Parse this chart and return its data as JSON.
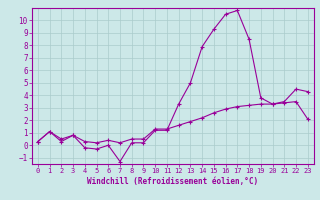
{
  "windchill_line": [
    0.3,
    1.1,
    0.3,
    0.8,
    -0.2,
    -0.3,
    0.0,
    -1.3,
    0.2,
    0.2,
    1.2,
    1.2,
    3.3,
    5.0,
    7.9,
    9.3,
    10.5,
    10.8,
    8.5,
    3.8,
    3.3,
    3.5,
    4.5,
    4.3
  ],
  "temp_line": [
    0.3,
    1.1,
    0.5,
    0.8,
    0.3,
    0.2,
    0.4,
    0.2,
    0.5,
    0.5,
    1.3,
    1.3,
    1.6,
    1.9,
    2.2,
    2.6,
    2.9,
    3.1,
    3.2,
    3.3,
    3.3,
    3.4,
    3.5,
    2.1
  ],
  "x": [
    0,
    1,
    2,
    3,
    4,
    5,
    6,
    7,
    8,
    9,
    10,
    11,
    12,
    13,
    14,
    15,
    16,
    17,
    18,
    19,
    20,
    21,
    22,
    23
  ],
  "x_labels": [
    "0",
    "1",
    "2",
    "3",
    "4",
    "5",
    "6",
    "7",
    "8",
    "9",
    "10",
    "11",
    "12",
    "13",
    "14",
    "15",
    "16",
    "17",
    "18",
    "19",
    "20",
    "21",
    "22",
    "23"
  ],
  "ylim": [
    -1.5,
    11.0
  ],
  "yticks": [
    -1,
    0,
    1,
    2,
    3,
    4,
    5,
    6,
    7,
    8,
    9,
    10
  ],
  "xlabel": "Windchill (Refroidissement éolien,°C)",
  "line_color": "#990099",
  "bg_color": "#cce8e8",
  "grid_color": "#aacccc"
}
